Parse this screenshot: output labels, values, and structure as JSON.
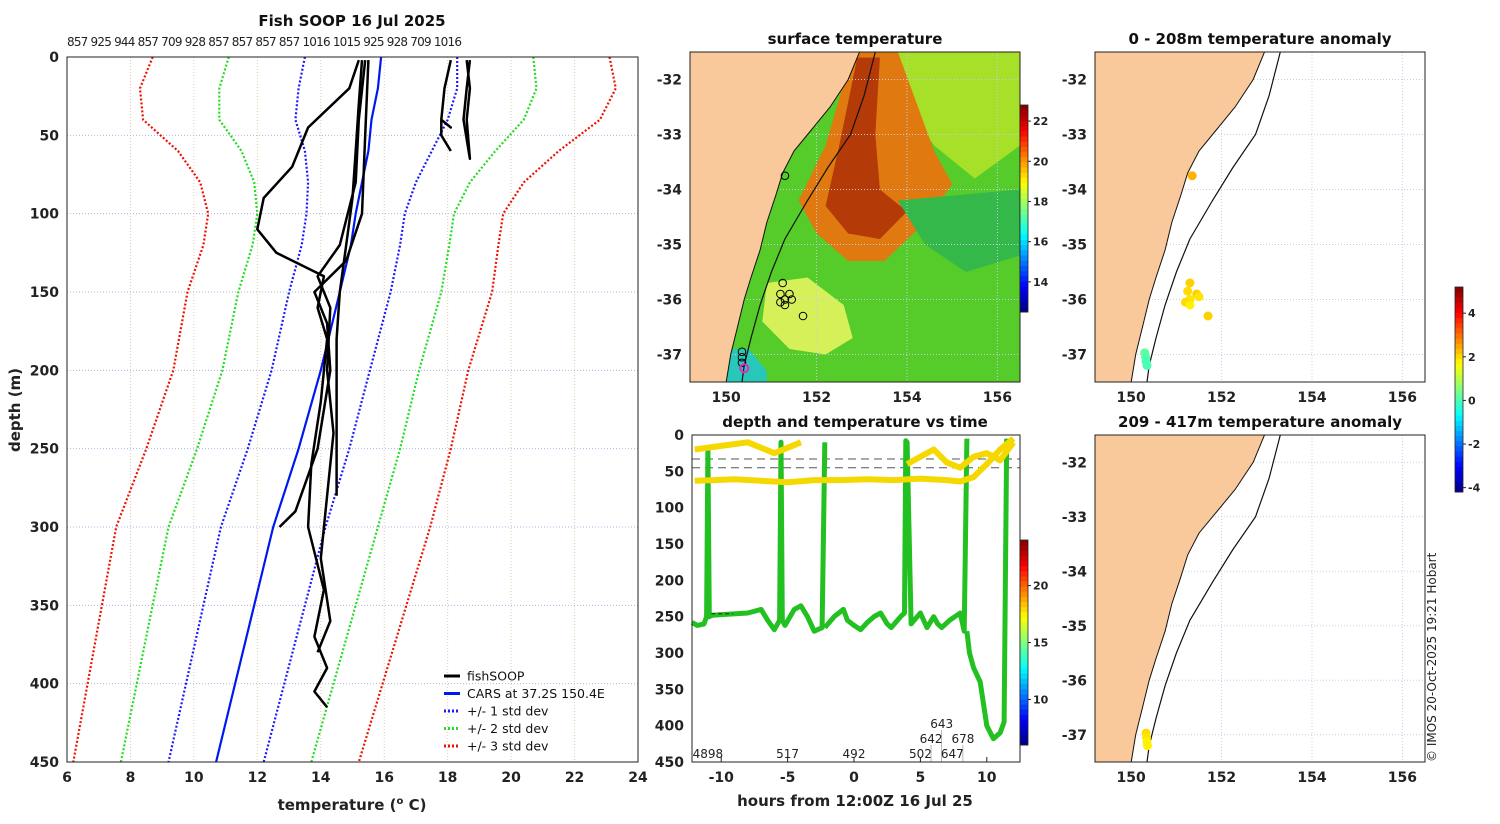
{
  "figure": {
    "credit": "© IMOS 20-Oct-2025 19:21 Hobart",
    "colors": {
      "land": "#f9c89b",
      "fish": "#000000",
      "cars": "#0018f0",
      "sd1": "#1a1aff",
      "sd2": "#22dd22",
      "sd3": "#ee1100"
    }
  },
  "chart_data": [
    {
      "type": "line",
      "title": "Fish SOOP 16 Jul 2025",
      "xlabel": "temperature (",
      "xlabel_sup": "o",
      "xlabel_end": " C)",
      "ylabel": "depth (m)",
      "xlim": [
        6,
        24
      ],
      "ylim": [
        450,
        0
      ],
      "xticks": [
        "6",
        "8",
        "10",
        "12",
        "14",
        "16",
        "18",
        "20",
        "22",
        "24"
      ],
      "yticks": [
        "0",
        "50",
        "100",
        "150",
        "200",
        "250",
        "300",
        "350",
        "400",
        "450"
      ],
      "top_labels": [
        "857",
        "925",
        "944",
        "857",
        "709",
        "928",
        "857",
        "857",
        "857",
        "857",
        "1016",
        "1015",
        "925",
        "928",
        "709",
        "1016"
      ],
      "legend": [
        "fishSOOP",
        "CARS at 37.2S 150.4E",
        "+/- 1 std dev",
        "+/- 2 std dev",
        "+/- 3 std dev"
      ],
      "legend_position": "bottom-right",
      "cars": {
        "depth": [
          0,
          20,
          40,
          60,
          80,
          100,
          120,
          150,
          200,
          250,
          300,
          350,
          400,
          450
        ],
        "mean": [
          15.9,
          15.8,
          15.6,
          15.5,
          15.3,
          15.1,
          14.95,
          14.6,
          14.0,
          13.3,
          12.5,
          11.9,
          11.3,
          10.7
        ],
        "sd": [
          2.4,
          2.5,
          2.4,
          2.0,
          1.7,
          1.55,
          1.55,
          1.6,
          1.55,
          1.6,
          1.65,
          1.6,
          1.55,
          1.5
        ]
      },
      "fishsoop_profiles": [
        {
          "depth": [
            2,
            30,
            60,
            90,
            120,
            150,
            180,
            210,
            240,
            280
          ],
          "temp": [
            15.3,
            15.2,
            15.1,
            15.0,
            14.8,
            14.6,
            14.5,
            14.5,
            14.5,
            14.5
          ]
        },
        {
          "depth": [
            2,
            20,
            45,
            70,
            90,
            110,
            125,
            140,
            160,
            180,
            220,
            260,
            300,
            340,
            370,
            390,
            405,
            415
          ],
          "temp": [
            15.2,
            14.9,
            13.6,
            13.1,
            12.2,
            12.0,
            12.6,
            14.1,
            13.9,
            14.2,
            14.0,
            13.7,
            13.6,
            14.1,
            13.8,
            14.2,
            13.8,
            14.2
          ]
        },
        {
          "depth": [
            2,
            40,
            80,
            120,
            140,
            160,
            200,
            240,
            280,
            320,
            360,
            380
          ],
          "temp": [
            15.4,
            15.2,
            15.1,
            14.6,
            13.9,
            14.3,
            14.2,
            14.4,
            14.2,
            14.0,
            14.3,
            13.9
          ]
        },
        {
          "depth": [
            2,
            50,
            100,
            130,
            150,
            170,
            200,
            250,
            290,
            300
          ],
          "temp": [
            15.5,
            15.4,
            15.3,
            14.8,
            13.8,
            14.2,
            14.3,
            13.9,
            13.2,
            12.7
          ]
        },
        {
          "depth": [
            2,
            20,
            40,
            45,
            40,
            50,
            60
          ],
          "temp": [
            18.1,
            17.9,
            17.8,
            18.1,
            17.8,
            17.8,
            18.1
          ]
        },
        {
          "depth": [
            2,
            20,
            40,
            65,
            40,
            20,
            2
          ],
          "temp": [
            18.6,
            18.7,
            18.6,
            18.7,
            18.5,
            18.6,
            18.7
          ]
        }
      ]
    },
    {
      "type": "heatmap",
      "title": "surface temperature",
      "xlim": [
        149.2,
        156.5
      ],
      "ylim": [
        -37.5,
        -31.5
      ],
      "xticks": [
        "150",
        "152",
        "154",
        "156"
      ],
      "yticks": [
        "-32",
        "-33",
        "-34",
        "-35",
        "-36",
        "-37"
      ],
      "colorbar": {
        "range": [
          12.5,
          22.8
        ],
        "ticks": [
          "14",
          "16",
          "18",
          "20",
          "22"
        ]
      },
      "stations": [
        [
          151.3,
          -33.75
        ],
        [
          151.25,
          -35.7
        ],
        [
          151.2,
          -35.9
        ],
        [
          151.4,
          -35.9
        ],
        [
          151.3,
          -36.0
        ],
        [
          151.2,
          -36.05
        ],
        [
          151.45,
          -36.0
        ],
        [
          151.3,
          -36.1
        ],
        [
          151.7,
          -36.3
        ],
        [
          150.35,
          -36.95
        ],
        [
          150.35,
          -37.05
        ],
        [
          150.35,
          -37.15
        ]
      ],
      "last_station": [
        150.4,
        -37.25
      ]
    },
    {
      "type": "scatter",
      "title": "depth and temperature vs time",
      "xlabel": "hours from 12:00Z 16 Jul 25",
      "xlim": [
        -12.2,
        12.5
      ],
      "ylim": [
        450,
        0
      ],
      "xticks": [
        "-10",
        "-5",
        "0",
        "5",
        "10"
      ],
      "yticks": [
        "0",
        "50",
        "100",
        "150",
        "200",
        "250",
        "300",
        "350",
        "400",
        "450"
      ],
      "colorbar": {
        "range": [
          6,
          24
        ],
        "ticks": [
          "10",
          "15",
          "20"
        ]
      },
      "bottom_labels": [
        {
          "t": -11,
          "text": "4898"
        },
        {
          "t": -5,
          "text": "517"
        },
        {
          "t": 0,
          "text": "492"
        },
        {
          "t": 5,
          "text": "502"
        },
        {
          "t": 5.8,
          "text": "642"
        },
        {
          "t": 6.6,
          "text": "643"
        },
        {
          "t": 7.4,
          "text": "647"
        },
        {
          "t": 8.2,
          "text": "678"
        }
      ],
      "casts": [
        {
          "t": [
            -12.2,
            -11.8,
            -11.3,
            -11.1,
            -11.0,
            -10.9,
            -10.7
          ],
          "d": [
            258,
            262,
            260,
            250,
            20,
            250,
            248
          ]
        },
        {
          "t": [
            -10.7,
            -8,
            -7,
            -6.5,
            -6,
            -5.6,
            -5.5,
            -5.4,
            -5.2,
            -4.5,
            -4,
            -3.5,
            -3,
            -2.4,
            -2.2
          ],
          "d": [
            248,
            245,
            240,
            255,
            268,
            255,
            10,
            255,
            262,
            240,
            235,
            250,
            270,
            265,
            10
          ]
        },
        {
          "t": [
            -2.2,
            -1.5,
            -0.8,
            -0.5,
            0,
            0.5,
            1,
            1.5,
            2,
            2.5,
            2.8,
            3.5,
            3.8,
            3.9,
            4.0,
            4.3,
            5,
            5.5,
            6,
            6.3,
            6.6,
            7.2,
            8,
            8.3,
            8.5
          ],
          "d": [
            265,
            250,
            240,
            255,
            262,
            268,
            258,
            250,
            245,
            260,
            265,
            250,
            245,
            8,
            10,
            260,
            245,
            265,
            250,
            260,
            265,
            255,
            245,
            270,
            5
          ]
        },
        {
          "t": [
            8.5,
            8.7,
            9,
            9.5,
            10,
            10.5,
            11,
            11.3,
            11.5
          ],
          "d": [
            270,
            300,
            320,
            340,
            400,
            418,
            410,
            395,
            5
          ]
        }
      ],
      "surface_tracks": [
        {
          "t": [
            -12,
            -10.5,
            -9,
            -7,
            -5,
            -3,
            -1,
            1,
            3,
            5,
            7,
            8,
            9,
            10,
            11,
            12
          ],
          "d": [
            63,
            62,
            61,
            63,
            65,
            62,
            62,
            61,
            62,
            60,
            62,
            64,
            58,
            40,
            20,
            5
          ]
        },
        {
          "t": [
            -12,
            -10,
            -8,
            -6,
            -4
          ],
          "d": [
            20,
            15,
            10,
            25,
            10
          ]
        },
        {
          "t": [
            4,
            5,
            6,
            7,
            8,
            9,
            10,
            11,
            12
          ],
          "d": [
            40,
            30,
            20,
            38,
            45,
            30,
            25,
            35,
            10
          ]
        }
      ],
      "dashed_depths": [
        33,
        45
      ],
      "depth_marks": [
        {
          "t": -10,
          "d": 246
        }
      ]
    },
    {
      "type": "scatter",
      "title": "0 - 208m temperature anomaly",
      "xlim": [
        149.2,
        156.5
      ],
      "ylim": [
        -37.5,
        -31.5
      ],
      "xticks": [
        "150",
        "152",
        "154",
        "156"
      ],
      "yticks": [
        "-32",
        "-33",
        "-34",
        "-35",
        "-36",
        "-37"
      ],
      "colorbar": {
        "range": [
          -4.2,
          5.2
        ],
        "ticks": [
          "4",
          "2",
          "0",
          "-2",
          "-4"
        ]
      },
      "points": [
        [
          151.35,
          -33.75,
          2.4
        ],
        [
          151.3,
          -35.7,
          2.1
        ],
        [
          151.25,
          -35.85,
          2.0
        ],
        [
          151.45,
          -35.9,
          2.1
        ],
        [
          151.3,
          -36.0,
          1.9
        ],
        [
          151.2,
          -36.05,
          2.0
        ],
        [
          151.5,
          -35.95,
          1.9
        ],
        [
          151.3,
          -36.1,
          1.8
        ],
        [
          151.7,
          -36.3,
          2.1
        ],
        [
          150.3,
          -36.97,
          0.2
        ],
        [
          150.32,
          -37.05,
          0.1
        ],
        [
          150.33,
          -37.13,
          0.0
        ],
        [
          150.35,
          -37.2,
          0.0
        ]
      ]
    },
    {
      "type": "scatter",
      "title": "209 - 417m temperature anomaly",
      "xlim": [
        149.2,
        156.5
      ],
      "ylim": [
        -37.5,
        -31.5
      ],
      "xticks": [
        "150",
        "152",
        "154",
        "156"
      ],
      "yticks": [
        "-32",
        "-33",
        "-34",
        "-35",
        "-36",
        "-37"
      ],
      "points": [
        [
          150.33,
          -36.97,
          2.0
        ],
        [
          150.34,
          -37.05,
          1.9
        ],
        [
          150.35,
          -37.13,
          1.8
        ],
        [
          150.36,
          -37.2,
          1.8
        ]
      ]
    }
  ]
}
